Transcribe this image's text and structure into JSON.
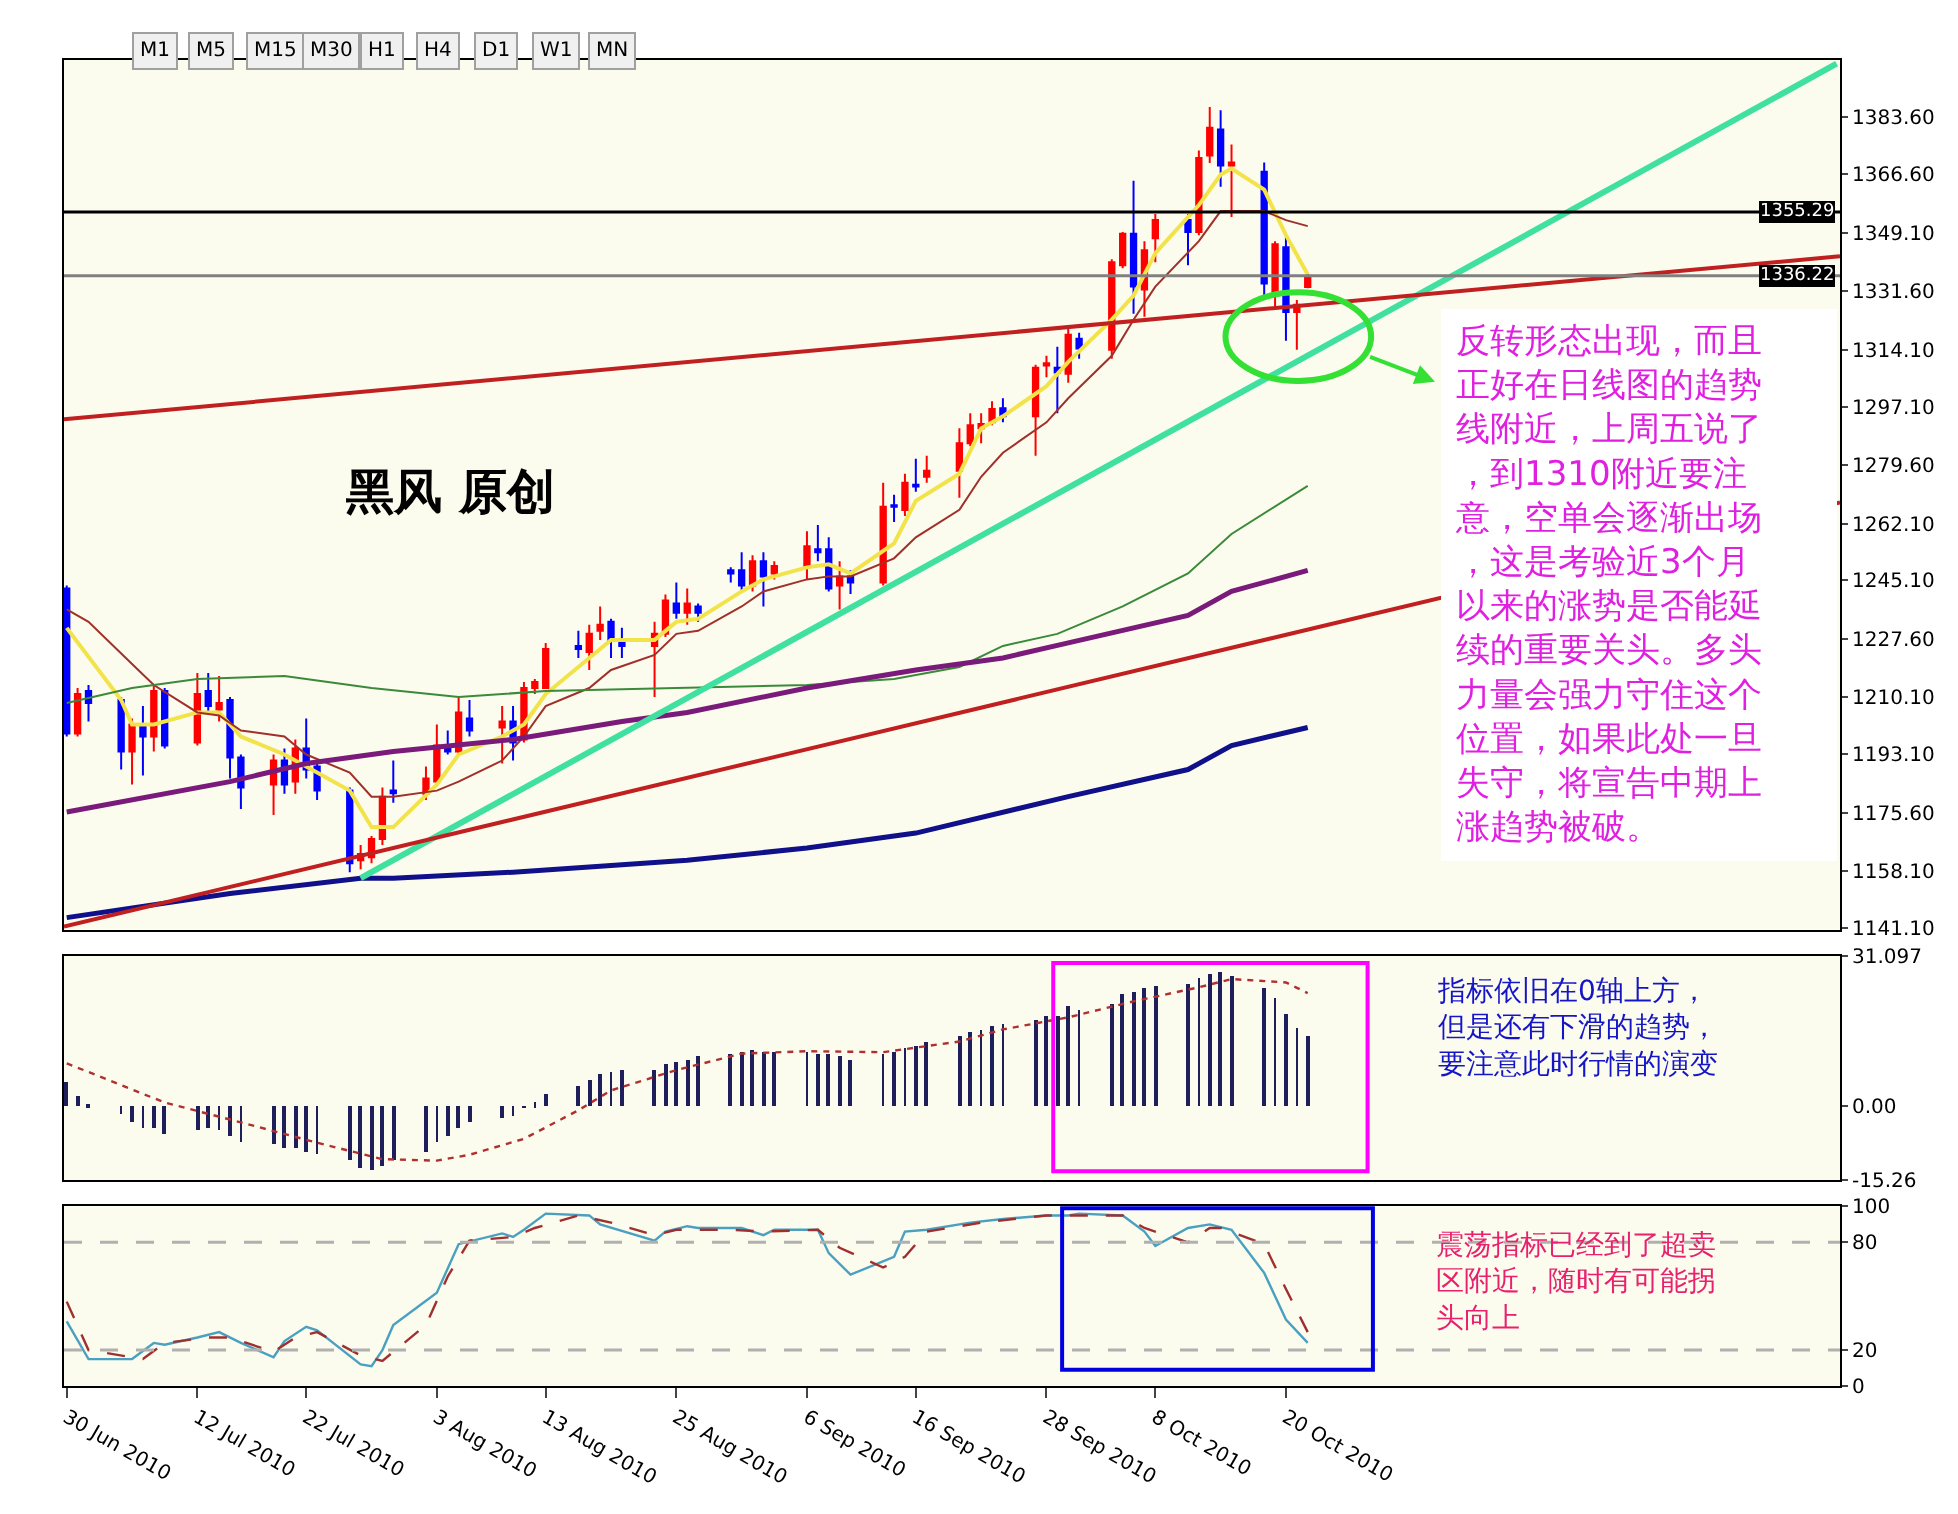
{
  "chart_data": [
    {
      "type": "other",
      "annotations": [
        "M1",
        "M5",
        "M15",
        "M30",
        "H1",
        "H4",
        "D1",
        "W1",
        "MN"
      ]
    },
    {
      "type": "candlestick",
      "grid": false,
      "tick_labels": "y",
      "x": [
        "2010-06-30",
        "2010-07-01",
        "2010-07-02",
        "2010-07-05",
        "2010-07-06",
        "2010-07-07",
        "2010-07-08",
        "2010-07-09",
        "2010-07-12",
        "2010-07-13",
        "2010-07-14",
        "2010-07-15",
        "2010-07-16",
        "2010-07-19",
        "2010-07-20",
        "2010-07-21",
        "2010-07-22",
        "2010-07-23",
        "2010-07-26",
        "2010-07-27",
        "2010-07-28",
        "2010-07-29",
        "2010-07-30",
        "2010-08-02",
        "2010-08-03",
        "2010-08-04",
        "2010-08-05",
        "2010-08-06",
        "2010-08-09",
        "2010-08-10",
        "2010-08-11",
        "2010-08-12",
        "2010-08-13",
        "2010-08-16",
        "2010-08-17",
        "2010-08-18",
        "2010-08-19",
        "2010-08-20",
        "2010-08-23",
        "2010-08-24",
        "2010-08-25",
        "2010-08-26",
        "2010-08-27",
        "2010-08-30",
        "2010-08-31",
        "2010-09-01",
        "2010-09-02",
        "2010-09-03",
        "2010-09-06",
        "2010-09-07",
        "2010-09-08",
        "2010-09-09",
        "2010-09-10",
        "2010-09-13",
        "2010-09-14",
        "2010-09-15",
        "2010-09-16",
        "2010-09-17",
        "2010-09-20",
        "2010-09-21",
        "2010-09-22",
        "2010-09-23",
        "2010-09-24",
        "2010-09-27",
        "2010-09-28",
        "2010-09-29",
        "2010-09-30",
        "2010-10-01",
        "2010-10-04",
        "2010-10-05",
        "2010-10-06",
        "2010-10-07",
        "2010-10-08",
        "2010-10-11",
        "2010-10-12",
        "2010-10-13",
        "2010-10-14",
        "2010-10-15",
        "2010-10-18",
        "2010-10-19",
        "2010-10-20",
        "2010-10-21",
        "2010-10-22"
      ],
      "ohlc": [
        [
          1242.7,
          1243.6,
          1198.4,
          1199.3
        ],
        [
          1199.3,
          1212.9,
          1198.4,
          1211.1
        ],
        [
          1212.0,
          1213.8,
          1202.9,
          1208.4
        ],
        [
          1209.3,
          1210.2,
          1188.5,
          1193.9
        ],
        [
          1193.9,
          1203.8,
          1184.0,
          1202.0
        ],
        [
          1202.0,
          1207.5,
          1186.7,
          1198.4
        ],
        [
          1198.4,
          1213.8,
          1193.9,
          1212.0
        ],
        [
          1212.0,
          1212.9,
          1194.8,
          1195.7
        ],
        [
          1196.6,
          1217.4,
          1195.7,
          1211.1
        ],
        [
          1212.0,
          1217.4,
          1205.6,
          1207.5
        ],
        [
          1206.5,
          1216.5,
          1202.9,
          1208.4
        ],
        [
          1209.3,
          1210.2,
          1185.8,
          1192.1
        ],
        [
          1192.1,
          1193.0,
          1176.7,
          1183.1
        ],
        [
          1184.0,
          1193.0,
          1174.9,
          1191.2
        ],
        [
          1191.2,
          1194.8,
          1181.3,
          1184.0
        ],
        [
          1184.9,
          1197.5,
          1181.3,
          1194.8
        ],
        [
          1194.8,
          1203.8,
          1185.8,
          1188.5
        ],
        [
          1189.4,
          1191.2,
          1179.4,
          1182.2
        ],
        [
          1182.2,
          1183.1,
          1157.8,
          1160.5
        ],
        [
          1161.4,
          1165.9,
          1158.7,
          1163.2
        ],
        [
          1162.3,
          1168.6,
          1160.5,
          1167.7
        ],
        [
          1167.7,
          1183.1,
          1165.9,
          1180.4
        ],
        [
          1182.2,
          1191.2,
          1178.6,
          1181.4
        ],
        [
          1181.3,
          1189.4,
          1179.4,
          1185.8
        ],
        [
          1184.9,
          1202.0,
          1184.0,
          1195.7
        ],
        [
          1195.7,
          1200.2,
          1193.0,
          1193.9
        ],
        [
          1193.9,
          1210.2,
          1193.0,
          1205.6
        ],
        [
          1203.8,
          1209.3,
          1198.4,
          1200.2
        ],
        [
          1201.1,
          1207.5,
          1190.3,
          1202.9
        ],
        [
          1202.9,
          1207.5,
          1191.2,
          1196.6
        ],
        [
          1197.5,
          1214.7,
          1196.6,
          1212.9
        ],
        [
          1212.9,
          1215.6,
          1211.1,
          1214.7
        ],
        [
          1212.9,
          1226.4,
          1212.9,
          1224.6
        ],
        [
          1225.5,
          1230.0,
          1221.9,
          1224.6
        ],
        [
          1223.7,
          1231.8,
          1218.3,
          1229.1
        ],
        [
          1230.0,
          1237.3,
          1227.3,
          1231.8
        ],
        [
          1232.7,
          1233.6,
          1221.9,
          1227.3
        ],
        [
          1226.4,
          1230.9,
          1221.9,
          1225.5
        ],
        [
          1225.5,
          1232.7,
          1210.2,
          1229.1
        ],
        [
          1229.1,
          1240.9,
          1228.2,
          1239.1
        ],
        [
          1238.2,
          1244.5,
          1233.6,
          1235.4
        ],
        [
          1235.4,
          1242.7,
          1231.8,
          1238.2
        ],
        [
          1237.3,
          1238.2,
          1232.7,
          1235.4
        ],
        [
          1248.1,
          1249.0,
          1244.5,
          1247.2
        ],
        [
          1248.1,
          1253.5,
          1241.8,
          1243.6
        ],
        [
          1243.6,
          1252.6,
          1241.8,
          1250.8
        ],
        [
          1250.8,
          1253.5,
          1237.3,
          1246.3
        ],
        [
          1247.2,
          1250.8,
          1245.4,
          1249.4
        ],
        [
          1249.0,
          1259.8,
          1245.4,
          1255.3
        ],
        [
          1254.4,
          1261.7,
          1250.8,
          1253.5
        ],
        [
          1254.4,
          1258.0,
          1241.8,
          1242.7
        ],
        [
          1243.6,
          1250.8,
          1236.4,
          1246.3
        ],
        [
          1246.3,
          1248.1,
          1241.0,
          1244.5
        ],
        [
          1244.5,
          1274.3,
          1243.6,
          1267.1
        ],
        [
          1267.6,
          1270.7,
          1262.6,
          1267.1
        ],
        [
          1266.2,
          1277.0,
          1264.4,
          1274.3
        ],
        [
          1273.7,
          1281.5,
          1271.6,
          1273.2
        ],
        [
          1276.1,
          1282.4,
          1274.3,
          1277.9
        ],
        [
          1277.9,
          1290.6,
          1269.8,
          1286.1
        ],
        [
          1286.1,
          1295.1,
          1285.2,
          1291.5
        ],
        [
          1290.6,
          1295.1,
          1286.1,
          1291.9
        ],
        [
          1292.4,
          1298.7,
          1291.5,
          1296.4
        ],
        [
          1296.6,
          1299.6,
          1292.4,
          1294.2
        ],
        [
          1294.2,
          1309.6,
          1282.4,
          1308.7
        ],
        [
          1309.4,
          1312.3,
          1305.9,
          1310.1
        ],
        [
          1308.7,
          1315.0,
          1295.1,
          1307.3
        ],
        [
          1306.9,
          1321.4,
          1304.2,
          1318.6
        ],
        [
          1317.4,
          1319.2,
          1311.4,
          1314.5
        ],
        [
          1314.1,
          1341.2,
          1311.4,
          1340.3
        ],
        [
          1339.4,
          1349.3,
          1338.5,
          1348.8
        ],
        [
          1348.8,
          1364.7,
          1324.9,
          1333.0
        ],
        [
          1332.1,
          1346.6,
          1324.0,
          1343.9
        ],
        [
          1347.5,
          1354.7,
          1340.3,
          1352.9
        ],
        [
          1352.9,
          1354.7,
          1339.4,
          1349.3
        ],
        [
          1349.3,
          1373.7,
          1348.4,
          1371.5
        ],
        [
          1372.2,
          1386.7,
          1370.0,
          1380.5
        ],
        [
          1380.0,
          1385.8,
          1362.9,
          1369.2
        ],
        [
          1369.2,
          1375.5,
          1353.8,
          1370.1
        ],
        [
          1367.4,
          1370.1,
          1329.4,
          1333.9
        ],
        [
          1331.2,
          1346.6,
          1326.7,
          1345.7
        ],
        [
          1344.8,
          1348.4,
          1316.8,
          1325.4
        ],
        [
          1325.4,
          1329.0,
          1314.1,
          1327.6
        ],
        [
          1332.9,
          1336.8,
          1332.5,
          1336.2
        ]
      ],
      "colors": [
        "#0000ff",
        "#ff0000",
        "#0000ff",
        "#0000ff",
        "#ff0000",
        "#0000ff",
        "#ff0000",
        "#0000ff",
        "#ff0000",
        "#0000ff",
        "#ff0000",
        "#0000ff",
        "#0000ff",
        "#ff0000",
        "#0000ff",
        "#ff0000",
        "#0000ff",
        "#0000ff",
        "#0000ff",
        "#ff0000",
        "#ff0000",
        "#ff0000",
        "#0000ff",
        "#ff0000",
        "#ff0000",
        "#0000ff",
        "#ff0000",
        "#0000ff",
        "#ff0000",
        "#0000ff",
        "#ff0000",
        "#ff0000",
        "#ff0000",
        "#0000ff",
        "#ff0000",
        "#ff0000",
        "#0000ff",
        "#0000ff",
        "#ff0000",
        "#ff0000",
        "#0000ff",
        "#ff0000",
        "#0000ff",
        "#0000ff",
        "#0000ff",
        "#ff0000",
        "#0000ff",
        "#ff0000",
        "#ff0000",
        "#0000ff",
        "#0000ff",
        "#ff0000",
        "#0000ff",
        "#ff0000",
        "#0000ff",
        "#ff0000",
        "#0000ff",
        "#ff0000",
        "#ff0000",
        "#ff0000",
        "#ff0000",
        "#ff0000",
        "#0000ff",
        "#ff0000",
        "#ff0000",
        "#0000ff",
        "#ff0000",
        "#0000ff",
        "#ff0000",
        "#ff0000",
        "#0000ff",
        "#ff0000",
        "#ff0000",
        "#0000ff",
        "#ff0000",
        "#ff0000",
        "#0000ff",
        "#ff0000",
        "#0000ff",
        "#ff0000",
        "#0000ff",
        "#ff0000",
        "#ff0000"
      ],
      "xlim": [
        "2010-06-29T18:00",
        "2010-12-09T21:30"
      ],
      "ylim": [
        1140.6,
        1400.8
      ],
      "yticks": [
        {
          "value": 1383.6,
          "label": "1383.60"
        },
        {
          "value": 1366.6,
          "label": "1366.60"
        },
        {
          "value": 1349.1,
          "label": "1349.10"
        },
        {
          "value": 1331.6,
          "label": "1331.60"
        },
        {
          "value": 1314.1,
          "label": "1314.10"
        },
        {
          "value": 1297.1,
          "label": "1297.10"
        },
        {
          "value": 1279.6,
          "label": "1279.60"
        },
        {
          "value": 1262.1,
          "label": "1262.10"
        },
        {
          "value": 1245.1,
          "label": "1245.10"
        },
        {
          "value": 1227.6,
          "label": "1227.60"
        },
        {
          "value": 1210.1,
          "label": "1210.10"
        },
        {
          "value": 1193.1,
          "label": "1193.10"
        },
        {
          "value": 1175.6,
          "label": "1175.60"
        },
        {
          "value": 1158.1,
          "label": "1158.10"
        },
        {
          "value": 1141.1,
          "label": "1141.10"
        }
      ],
      "ref_lines": [
        {
          "axis": "y",
          "value": 1355.29,
          "label": "1355.29",
          "color": "#000000"
        },
        {
          "axis": "y",
          "value": 1336.22,
          "label": "1336.22",
          "color": "#808080"
        }
      ],
      "annotations": [
        "黑风 原创",
        "反转形态出现，而且正好在日线图的趋势线附近，上周五说了，到1310附近要注意，空单会逐渐出场，这是考验近3个月以来的涨势是否能延续的重要关头。多头力量会强力守住这个位置，如果此处一旦失守，将宣告中期上涨趋势被破。"
      ],
      "series": [
        {
          "type": "line",
          "color": "#f2e34a",
          "x": [
            "2010-06-30",
            "2010-07-05",
            "2010-07-06",
            "2010-07-08",
            "2010-07-12",
            "2010-07-14",
            "2010-07-16",
            "2010-07-20",
            "2010-07-22",
            "2010-07-26",
            "2010-07-28",
            "2010-07-30",
            "2010-08-03",
            "2010-08-05",
            "2010-08-09",
            "2010-08-11",
            "2010-08-13",
            "2010-08-17",
            "2010-08-19",
            "2010-08-23",
            "2010-08-25",
            "2010-08-27",
            "2010-08-31",
            "2010-09-02",
            "2010-09-06",
            "2010-09-08",
            "2010-09-10",
            "2010-09-14",
            "2010-09-16",
            "2010-09-20",
            "2010-09-22",
            "2010-09-24",
            "2010-09-28",
            "2010-09-30",
            "2010-10-04",
            "2010-10-06",
            "2010-10-08",
            "2010-10-12",
            "2010-10-14",
            "2010-10-15",
            "2010-10-18",
            "2010-10-20",
            "2010-10-22"
          ],
          "values": [
            1230.9,
            1209.3,
            1202.0,
            1202.0,
            1205.6,
            1205.6,
            1198.4,
            1193.0,
            1189.4,
            1182.2,
            1171.3,
            1171.3,
            1184.0,
            1193.0,
            1198.4,
            1202.0,
            1211.1,
            1221.9,
            1227.3,
            1227.3,
            1232.7,
            1233.6,
            1241.8,
            1245.4,
            1249.0,
            1249.9,
            1247.2,
            1256.2,
            1268.9,
            1277.0,
            1290.6,
            1294.2,
            1303.2,
            1310.5,
            1323.1,
            1330.3,
            1343.0,
            1357.4,
            1366.5,
            1368.3,
            1362.0,
            1348.4,
            1336.6
          ]
        },
        {
          "type": "line",
          "color": "#a0302a",
          "x": [
            "2010-06-30",
            "2010-07-02",
            "2010-07-06",
            "2010-07-08",
            "2010-07-12",
            "2010-07-14",
            "2010-07-16",
            "2010-07-20",
            "2010-07-22",
            "2010-07-26",
            "2010-07-28",
            "2010-07-30",
            "2010-08-03",
            "2010-08-05",
            "2010-08-09",
            "2010-08-11",
            "2010-08-13",
            "2010-08-17",
            "2010-08-19",
            "2010-08-23",
            "2010-08-25",
            "2010-08-27",
            "2010-08-31",
            "2010-09-02",
            "2010-09-06",
            "2010-09-08",
            "2010-09-10",
            "2010-09-14",
            "2010-09-16",
            "2010-09-20",
            "2010-09-22",
            "2010-09-24",
            "2010-09-28",
            "2010-09-30",
            "2010-10-04",
            "2010-10-06",
            "2010-10-08",
            "2010-10-12",
            "2010-10-14",
            "2010-10-18",
            "2010-10-20",
            "2010-10-22"
          ],
          "values": [
            1236.4,
            1232.7,
            1220.1,
            1213.8,
            1205.6,
            1204.7,
            1200.2,
            1198.4,
            1193.0,
            1187.6,
            1180.4,
            1180.4,
            1182.2,
            1184.9,
            1191.2,
            1198.4,
            1207.5,
            1212.9,
            1218.3,
            1222.8,
            1229.1,
            1230.0,
            1237.3,
            1241.8,
            1245.4,
            1246.3,
            1246.3,
            1251.7,
            1258.0,
            1266.2,
            1276.1,
            1283.3,
            1292.4,
            1299.6,
            1312.3,
            1323.1,
            1333.0,
            1346.6,
            1355.6,
            1355.6,
            1352.9,
            1351.1
          ]
        },
        {
          "type": "line",
          "color": "#3a8a3a",
          "x": [
            "2010-06-30",
            "2010-07-06",
            "2010-07-12",
            "2010-07-20",
            "2010-07-28",
            "2010-08-05",
            "2010-08-13",
            "2010-08-25",
            "2010-09-06",
            "2010-09-14",
            "2010-09-20",
            "2010-09-24",
            "2010-09-29",
            "2010-10-05",
            "2010-10-11",
            "2010-10-15",
            "2010-10-22"
          ],
          "values": [
            1208.4,
            1212.9,
            1215.6,
            1216.5,
            1212.9,
            1210.2,
            1212.0,
            1212.9,
            1213.8,
            1215.6,
            1219.2,
            1225.5,
            1229.1,
            1237.3,
            1247.2,
            1259.0,
            1273.4
          ]
        },
        {
          "type": "line",
          "color": "#7a1a7a",
          "x": [
            "2010-06-30",
            "2010-07-15",
            "2010-07-22",
            "2010-07-30",
            "2010-08-10",
            "2010-08-20",
            "2010-08-26",
            "2010-09-06",
            "2010-09-16",
            "2010-09-24",
            "2010-09-30",
            "2010-10-11",
            "2010-10-15",
            "2010-10-22"
          ],
          "values": [
            1175.8,
            1184.9,
            1190.3,
            1193.9,
            1197.5,
            1202.9,
            1205.6,
            1212.9,
            1218.3,
            1221.9,
            1226.4,
            1234.6,
            1241.8,
            1248.1
          ]
        },
        {
          "type": "line",
          "color": "#10108a",
          "x": [
            "2010-06-30",
            "2010-07-15",
            "2010-07-27",
            "2010-07-30",
            "2010-08-10",
            "2010-08-26",
            "2010-09-06",
            "2010-09-16",
            "2010-09-30",
            "2010-10-11",
            "2010-10-15",
            "2010-10-22"
          ],
          "values": [
            1144.2,
            1151.4,
            1156.0,
            1156.0,
            1157.8,
            1161.4,
            1165.0,
            1169.5,
            1180.4,
            1188.5,
            1195.7,
            1201.1
          ]
        },
        {
          "type": "line",
          "color": "#40e0a0",
          "x": [
            "2010-07-27",
            "2010-12-09T14:00"
          ],
          "values": [
            1156.0,
            1399.7
          ]
        },
        {
          "type": "line",
          "color": "#c02020",
          "x": [
            "2010-06-29T18:00",
            "2010-12-09T21:30"
          ],
          "values": [
            1293.3,
            1342.1
          ]
        },
        {
          "type": "line",
          "color": "#c02020",
          "x": [
            "2010-06-29T18:00",
            "2010-12-09T21:30"
          ],
          "values": [
            1141.5,
            1268.4
          ]
        }
      ]
    },
    {
      "type": "bar",
      "grid": false,
      "tick_labels": "y",
      "x": [
        "2010-06-30",
        "2010-07-01",
        "2010-07-02",
        "2010-07-05",
        "2010-07-06",
        "2010-07-07",
        "2010-07-08",
        "2010-07-09",
        "2010-07-12",
        "2010-07-13",
        "2010-07-14",
        "2010-07-15",
        "2010-07-16",
        "2010-07-19",
        "2010-07-20",
        "2010-07-21",
        "2010-07-22",
        "2010-07-23",
        "2010-07-26",
        "2010-07-27",
        "2010-07-28",
        "2010-07-29",
        "2010-07-30",
        "2010-08-02",
        "2010-08-03",
        "2010-08-04",
        "2010-08-05",
        "2010-08-06",
        "2010-08-09",
        "2010-08-10",
        "2010-08-11",
        "2010-08-12",
        "2010-08-13",
        "2010-08-16",
        "2010-08-17",
        "2010-08-18",
        "2010-08-19",
        "2010-08-20",
        "2010-08-23",
        "2010-08-24",
        "2010-08-25",
        "2010-08-26",
        "2010-08-27",
        "2010-08-30",
        "2010-08-31",
        "2010-09-01",
        "2010-09-02",
        "2010-09-03",
        "2010-09-06",
        "2010-09-07",
        "2010-09-08",
        "2010-09-09",
        "2010-09-10",
        "2010-09-13",
        "2010-09-14",
        "2010-09-15",
        "2010-09-16",
        "2010-09-17",
        "2010-09-20",
        "2010-09-21",
        "2010-09-22",
        "2010-09-23",
        "2010-09-24",
        "2010-09-27",
        "2010-09-28",
        "2010-09-29",
        "2010-09-30",
        "2010-10-01",
        "2010-10-04",
        "2010-10-05",
        "2010-10-06",
        "2010-10-07",
        "2010-10-08",
        "2010-10-11",
        "2010-10-12",
        "2010-10-13",
        "2010-10-14",
        "2010-10-15",
        "2010-10-18",
        "2010-10-19",
        "2010-10-20",
        "2010-10-21",
        "2010-10-22"
      ],
      "xlim": [
        "2010-06-29T18:00",
        "2010-12-09T21:30"
      ],
      "ylim": [
        -15.26,
        31.097
      ],
      "yticks": [
        31.097,
        {
          "value": 0,
          "label": "0.00"
        },
        -15.26
      ],
      "annotations": [
        "指标依旧在0轴上方，但是还有下滑的趋势，要注意此时行情的演变"
      ],
      "series": [
        {
          "color": "#1e1e5a",
          "values": [
            5.0,
            2.0,
            0.3,
            -1.7,
            -3.0,
            -4.5,
            -4.5,
            -5.5,
            -5.0,
            -4.5,
            -5.0,
            -6.2,
            -7.2,
            -7.9,
            -8.4,
            -8.7,
            -9.2,
            -9.7,
            -11.2,
            -12.5,
            -12.9,
            -12.2,
            -10.9,
            -9.2,
            -7.5,
            -5.9,
            -4.5,
            -3.3,
            -2.5,
            -2.0,
            -0.3,
            0.8,
            2.5,
            4.2,
            5.5,
            6.7,
            7.2,
            7.5,
            7.5,
            8.7,
            9.2,
            9.7,
            10.4,
            10.9,
            11.2,
            11.5,
            11.4,
            11.4,
            11.4,
            10.9,
            10.9,
            10.4,
            9.7,
            10.9,
            11.4,
            11.9,
            12.5,
            13.4,
            14.6,
            15.2,
            15.9,
            16.6,
            16.9,
            17.9,
            18.6,
            18.9,
            20.6,
            20.1,
            21.2,
            23.1,
            23.8,
            24.3,
            24.8,
            25.4,
            26.4,
            27.3,
            27.6,
            27.1,
            24.3,
            22.6,
            19.2,
            16.4,
            14.6
          ]
        },
        {
          "type": "line",
          "line_style": "dotted",
          "color": "#b03030",
          "x": [
            "2010-06-30",
            "2010-07-09",
            "2010-07-16",
            "2010-07-23",
            "2010-07-29",
            "2010-08-03",
            "2010-08-06",
            "2010-08-11",
            "2010-08-16",
            "2010-08-19",
            "2010-08-25",
            "2010-08-31",
            "2010-09-06",
            "2010-09-13",
            "2010-09-20",
            "2010-09-24",
            "2010-09-30",
            "2010-10-06",
            "2010-10-12",
            "2010-10-15",
            "2010-10-20",
            "2010-10-22"
          ],
          "values": [
            8.9,
            0.8,
            -3.3,
            -7.5,
            -10.9,
            -11.2,
            -10.0,
            -6.7,
            -0.8,
            3.3,
            7.5,
            10.9,
            11.4,
            11.2,
            13.4,
            15.9,
            18.4,
            21.7,
            24.6,
            26.3,
            25.6,
            23.4
          ]
        }
      ]
    },
    {
      "type": "line",
      "grid": false,
      "xlim": [
        "2010-06-29T18:00",
        "2010-12-09T21:30"
      ],
      "xticks": [
        {
          "value": "2010-06-30",
          "label": "30 Jun 2010"
        },
        {
          "value": "2010-07-12",
          "label": "12 Jul 2010"
        },
        {
          "value": "2010-07-22",
          "label": "22 Jul 2010"
        },
        {
          "value": "2010-08-03",
          "label": "3 Aug 2010"
        },
        {
          "value": "2010-08-13",
          "label": "13 Aug 2010"
        },
        {
          "value": "2010-08-25",
          "label": "25 Aug 2010"
        },
        {
          "value": "2010-09-06",
          "label": "6 Sep 2010"
        },
        {
          "value": "2010-09-16",
          "label": "16 Sep 2010"
        },
        {
          "value": "2010-09-28",
          "label": "28 Sep 2010"
        },
        {
          "value": "2010-10-08",
          "label": "8 Oct 2010"
        },
        {
          "value": "2010-10-20",
          "label": "20 Oct 2010"
        }
      ],
      "ylim": [
        0,
        100
      ],
      "yticks": [
        100,
        80,
        20,
        0
      ],
      "ref_lines": [
        {
          "axis": "y",
          "value": 80,
          "color": "#b0b0b0",
          "line_style": "dashed"
        },
        {
          "axis": "y",
          "value": 20,
          "color": "#b0b0b0",
          "line_style": "dashed"
        }
      ],
      "annotations": [
        "震荡指标已经到了超卖区附近，随时有可能拐头向上"
      ],
      "series": [
        {
          "color": "#4aa0c0",
          "x": [
            "2010-06-30",
            "2010-07-02",
            "2010-07-06",
            "2010-07-08",
            "2010-07-09",
            "2010-07-12",
            "2010-07-14",
            "2010-07-16",
            "2010-07-19",
            "2010-07-20",
            "2010-07-22",
            "2010-07-23",
            "2010-07-27",
            "2010-07-28",
            "2010-07-29",
            "2010-07-30",
            "2010-08-03",
            "2010-08-05",
            "2010-08-09",
            "2010-08-10",
            "2010-08-11",
            "2010-08-13",
            "2010-08-17",
            "2010-08-18",
            "2010-08-23",
            "2010-08-24",
            "2010-08-26",
            "2010-08-27",
            "2010-08-31",
            "2010-09-02",
            "2010-09-03",
            "2010-09-07",
            "2010-09-08",
            "2010-09-10",
            "2010-09-14",
            "2010-09-15",
            "2010-09-17",
            "2010-09-21",
            "2010-09-24",
            "2010-09-28",
            "2010-09-30",
            "2010-10-01",
            "2010-10-05",
            "2010-10-07",
            "2010-10-08",
            "2010-10-11",
            "2010-10-13",
            "2010-10-15",
            "2010-10-18",
            "2010-10-20",
            "2010-10-22"
          ],
          "values": [
            36,
            15,
            15,
            24,
            23,
            27,
            30,
            24,
            16,
            25,
            33,
            31,
            12,
            11,
            20,
            34,
            52,
            79,
            85,
            83,
            87,
            96,
            95,
            90,
            81,
            86,
            89,
            88,
            88,
            84,
            87,
            87,
            74,
            62,
            72,
            86,
            87,
            91,
            93,
            95,
            95,
            96,
            95,
            86,
            78,
            88,
            90,
            87,
            63,
            37,
            24
          ]
        },
        {
          "color": "#a03030",
          "line_style": "dashed",
          "x": [
            "2010-06-30",
            "2010-07-02",
            "2010-07-07",
            "2010-07-09",
            "2010-07-13",
            "2010-07-15",
            "2010-07-19",
            "2010-07-21",
            "2010-07-23",
            "2010-07-27",
            "2010-07-29",
            "2010-08-02",
            "2010-08-04",
            "2010-08-06",
            "2010-08-10",
            "2010-08-12",
            "2010-08-16",
            "2010-08-19",
            "2010-08-23",
            "2010-08-25",
            "2010-08-30",
            "2010-09-02",
            "2010-09-07",
            "2010-09-09",
            "2010-09-13",
            "2010-09-15",
            "2010-09-17",
            "2010-09-22",
            "2010-09-28",
            "2010-10-01",
            "2010-10-05",
            "2010-10-07",
            "2010-10-11",
            "2010-10-13",
            "2010-10-14",
            "2010-10-18",
            "2010-10-20",
            "2010-10-22"
          ],
          "values": [
            47,
            20,
            15,
            24,
            27,
            27,
            19,
            27,
            30,
            17,
            14,
            34,
            61,
            81,
            83,
            88,
            95,
            91,
            84,
            87,
            87,
            86,
            87,
            77,
            66,
            72,
            86,
            91,
            95,
            95,
            95,
            88,
            80,
            88,
            88,
            79,
            54,
            30
          ]
        }
      ]
    }
  ]
}
